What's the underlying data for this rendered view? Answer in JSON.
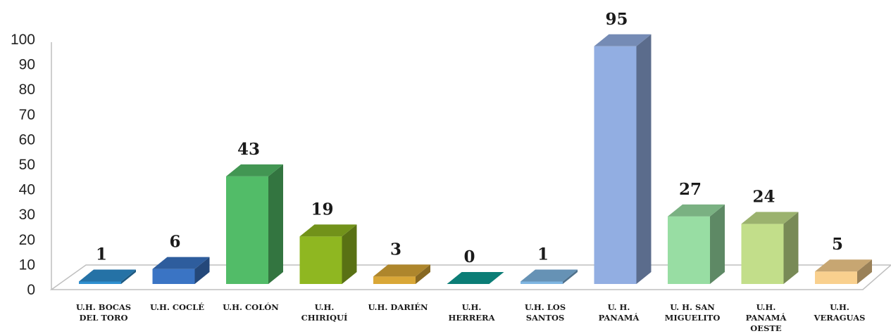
{
  "chart_data": {
    "type": "bar",
    "style": "3d-column",
    "categories": [
      [
        "U.H. BOCAS",
        "DEL TORO"
      ],
      [
        "U.H. COCLÉ"
      ],
      [
        "U.H. COLÓN"
      ],
      [
        "U.H.",
        "CHIRIQUÍ"
      ],
      [
        "U.H. DARIÉN"
      ],
      [
        "U.H.",
        "HERRERA"
      ],
      [
        "U.H. LOS",
        "SANTOS"
      ],
      [
        "U. H.",
        "PANAMÁ"
      ],
      [
        "U. H. SAN",
        "MIGUELITO"
      ],
      [
        "U.H.",
        "PANAMÁ",
        "OESTE"
      ],
      [
        "U.H.",
        "VERAGUAS"
      ]
    ],
    "values": [
      1,
      6,
      43,
      19,
      3,
      0,
      1,
      95,
      27,
      24,
      5
    ],
    "data_labels": [
      "1",
      "6",
      "43",
      "19",
      "3",
      "0",
      "1",
      "95",
      "27",
      "24",
      "5"
    ],
    "colors": [
      "#2E8FD0",
      "#3A74C4",
      "#52BC68",
      "#8FB721",
      "#D9A737",
      "#0E9C93",
      "#7FB6E2",
      "#92AEE2",
      "#98DDA3",
      "#C2DE8A",
      "#F9D08E"
    ],
    "yticks": [
      "0",
      "10",
      "20",
      "30",
      "40",
      "50",
      "60",
      "70",
      "80",
      "90",
      "100"
    ],
    "ylim": [
      0,
      100
    ],
    "grid": false,
    "legend": "none",
    "title": "",
    "xlabel": "",
    "ylabel": ""
  }
}
